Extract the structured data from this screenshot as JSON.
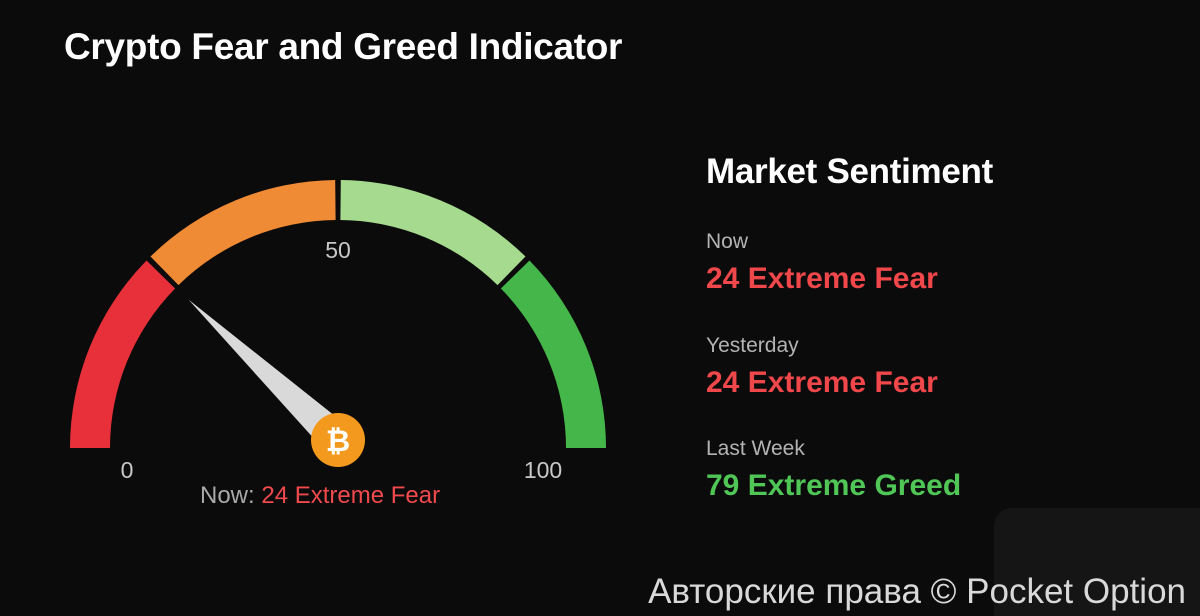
{
  "title": "Crypto Fear and Greed Indicator",
  "gauge": {
    "min_label": "0",
    "mid_label": "50",
    "max_label": "100",
    "now_label": "Now:",
    "now_value": "24 Extreme Fear",
    "coin_symbol": "₿",
    "coin_icon": "bitcoin-icon"
  },
  "chart_data": {
    "type": "gauge",
    "min": 0,
    "max": 100,
    "value": 24,
    "value_label": "24 Extreme Fear",
    "segments": [
      {
        "from": 0,
        "to": 25,
        "color": "#e8303a"
      },
      {
        "from": 25,
        "to": 50,
        "color": "#ef8a35"
      },
      {
        "from": 50,
        "to": 75,
        "color": "#a6da8f"
      },
      {
        "from": 75,
        "to": 100,
        "color": "#45b649"
      }
    ],
    "tick_labels": [
      "0",
      "50",
      "100"
    ]
  },
  "sentiment": {
    "title": "Market Sentiment",
    "items": [
      {
        "label": "Now",
        "value": "24 Extreme Fear",
        "tone": "fear"
      },
      {
        "label": "Yesterday",
        "value": "24 Extreme Fear",
        "tone": "fear"
      },
      {
        "label": "Last Week",
        "value": "79 Extreme Greed",
        "tone": "greed"
      }
    ]
  },
  "colors": {
    "background": "#0b0b0b",
    "fear": "#f0474b",
    "greed": "#4fc656",
    "needle": "#d9d9d9",
    "coin": "#f39a1e"
  },
  "copyright": "Авторские права © Pocket Option"
}
